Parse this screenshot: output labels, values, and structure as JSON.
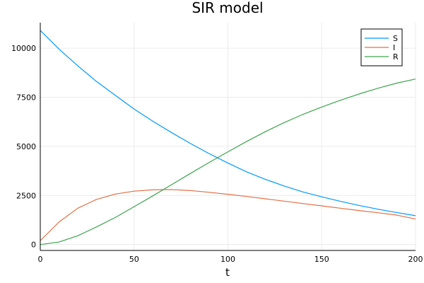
{
  "chart_data": {
    "type": "line",
    "title": "SIR model",
    "xlabel": "t",
    "ylabel": "",
    "xlim": [
      0,
      200
    ],
    "ylim": [
      -300,
      11300
    ],
    "xticks": [
      0,
      50,
      100,
      150,
      200
    ],
    "xtick_labels": [
      "0",
      "50",
      "100",
      "150",
      "200"
    ],
    "yticks": [
      0,
      2500,
      5000,
      7500,
      10000
    ],
    "ytick_labels": [
      "0",
      "2500",
      "5000",
      "7500",
      "10000"
    ],
    "grid": true,
    "legend_position": "top-right",
    "x": [
      0,
      10,
      20,
      30,
      40,
      50,
      60,
      70,
      80,
      90,
      100,
      110,
      120,
      130,
      140,
      150,
      160,
      170,
      180,
      190,
      200
    ],
    "series": [
      {
        "name": "S",
        "color": "#009af9",
        "values": [
          10900,
          9950,
          9100,
          8300,
          7600,
          6900,
          6280,
          5700,
          5150,
          4630,
          4150,
          3700,
          3320,
          2980,
          2680,
          2430,
          2200,
          1990,
          1800,
          1630,
          1470
        ]
      },
      {
        "name": "I",
        "color": "#e26f46",
        "values": [
          200,
          1150,
          1850,
          2300,
          2570,
          2720,
          2790,
          2800,
          2750,
          2660,
          2560,
          2450,
          2330,
          2210,
          2090,
          1970,
          1850,
          1730,
          1620,
          1500,
          1300
        ]
      },
      {
        "name": "R",
        "color": "#3da44d",
        "values": [
          0,
          130,
          450,
          900,
          1380,
          1930,
          2480,
          3050,
          3620,
          4180,
          4720,
          5250,
          5750,
          6210,
          6630,
          7000,
          7350,
          7670,
          7960,
          8220,
          8430
        ]
      }
    ]
  }
}
